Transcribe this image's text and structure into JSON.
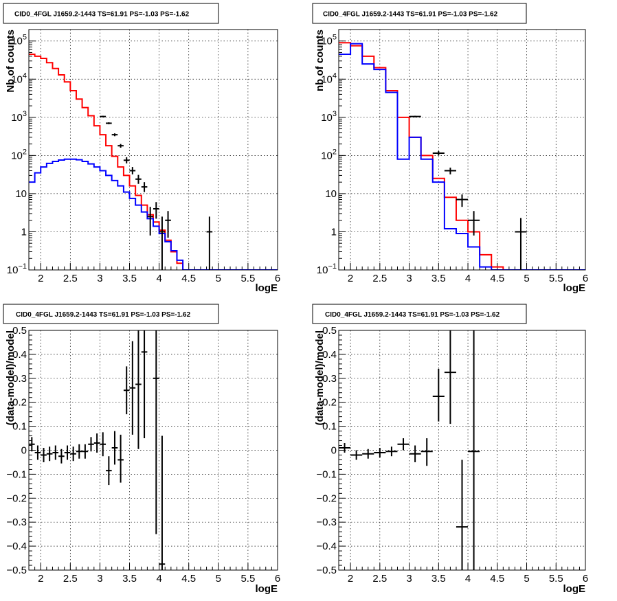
{
  "chart_data": [
    {
      "id": "p1",
      "type": "line",
      "title": "CID0_4FGL J1659.2-1443 TS=61.91 PS=-1.03 PS=-1.62",
      "xlabel": "logE",
      "ylabel": "Nb of counts",
      "xlim": [
        1.8,
        6.0
      ],
      "ylim": [
        0.1,
        200000
      ],
      "yscale": "log",
      "grid": true,
      "x_ticks": [
        "2",
        "2.5",
        "3",
        "3.5",
        "4",
        "4.5",
        "5",
        "5.5",
        "6"
      ],
      "y_ticks": [
        {
          "v": 0.1,
          "label": "10",
          "exp": "−1"
        },
        {
          "v": 1,
          "label": "1",
          "exp": ""
        },
        {
          "v": 10,
          "label": "10",
          "exp": ""
        },
        {
          "v": 100,
          "label": "10",
          "exp": "2"
        },
        {
          "v": 1000,
          "label": "10",
          "exp": "3"
        },
        {
          "v": 10000,
          "label": "10",
          "exp": "4"
        },
        {
          "v": 100000,
          "label": "10",
          "exp": "5"
        }
      ],
      "bin_edges": [
        1.8,
        1.9,
        2.0,
        2.1,
        2.2,
        2.3,
        2.4,
        2.5,
        2.6,
        2.7,
        2.8,
        2.9,
        3.0,
        3.1,
        3.2,
        3.3,
        3.4,
        3.5,
        3.6,
        3.7,
        3.8,
        3.9,
        4.0,
        4.1,
        4.2,
        4.3,
        4.4,
        4.5,
        4.6,
        4.7,
        4.8,
        4.9,
        5.0,
        5.1,
        5.2,
        5.3,
        5.4,
        5.5,
        5.6,
        5.7,
        5.8,
        5.9,
        6.0
      ],
      "series": [
        {
          "color": "#ff0000",
          "style": "step",
          "values": [
            45000,
            40000,
            35000,
            27000,
            19000,
            13000,
            8500,
            5000,
            3000,
            1800,
            1100,
            600,
            350,
            180,
            95,
            50,
            30,
            16,
            9,
            5,
            2.8,
            1.8,
            1.1,
            0.6,
            0.3,
            0.15,
            0.1,
            0.1,
            0.1,
            0.1,
            0.1,
            0.1,
            0.1,
            0.1,
            0.1,
            0.1,
            0.1,
            0.1,
            0.1,
            0.1,
            0.1,
            0.1
          ]
        },
        {
          "color": "#0000ff",
          "style": "step",
          "values": [
            20,
            35,
            50,
            62,
            70,
            76,
            80,
            80,
            77,
            70,
            60,
            50,
            40,
            30,
            22,
            16,
            11,
            7.5,
            5,
            3.3,
            2.2,
            1.4,
            0.9,
            0.55,
            0.32,
            0.18,
            0.1,
            0.1,
            0.1,
            0.1,
            0.1,
            0.1,
            0.1,
            0.1,
            0.1,
            0.1,
            0.1,
            0.1,
            0.1,
            0.1,
            0.1,
            0.1
          ]
        }
      ],
      "points": [
        {
          "x": 3.05,
          "y": 1050,
          "ylo": 1000,
          "yhi": 1100
        },
        {
          "x": 3.15,
          "y": 700,
          "ylo": 660,
          "yhi": 740
        },
        {
          "x": 3.25,
          "y": 350,
          "ylo": 320,
          "yhi": 380
        },
        {
          "x": 3.35,
          "y": 180,
          "ylo": 160,
          "yhi": 200
        },
        {
          "x": 3.45,
          "y": 75,
          "ylo": 62,
          "yhi": 90
        },
        {
          "x": 3.55,
          "y": 40,
          "ylo": 32,
          "yhi": 50
        },
        {
          "x": 3.65,
          "y": 24,
          "ylo": 18,
          "yhi": 31
        },
        {
          "x": 3.75,
          "y": 15,
          "ylo": 11,
          "yhi": 20
        },
        {
          "x": 3.85,
          "y": 2.5,
          "ylo": 0.8,
          "yhi": 4.5
        },
        {
          "x": 3.95,
          "y": 4,
          "ylo": 2.2,
          "yhi": 6
        },
        {
          "x": 4.05,
          "y": 1,
          "ylo": 0.1,
          "yhi": 2.5
        },
        {
          "x": 4.15,
          "y": 2,
          "ylo": 0.7,
          "yhi": 3.5
        },
        {
          "x": 4.85,
          "y": 1,
          "ylo": 0.1,
          "yhi": 2.5
        }
      ]
    },
    {
      "id": "p2",
      "type": "line",
      "title": "CID0_4FGL J1659.2-1443 TS=61.91 PS=-1.03 PS=-1.62",
      "xlabel": "logE",
      "ylabel": "nb of counts",
      "xlim": [
        1.8,
        6.0
      ],
      "ylim": [
        0.1,
        200000
      ],
      "yscale": "log",
      "grid": true,
      "x_ticks": [
        "2",
        "2.5",
        "3",
        "3.5",
        "4",
        "4.5",
        "5",
        "5.5",
        "6"
      ],
      "y_ticks": [
        {
          "v": 0.1,
          "label": "10",
          "exp": "−1"
        },
        {
          "v": 1,
          "label": "1",
          "exp": ""
        },
        {
          "v": 10,
          "label": "10",
          "exp": ""
        },
        {
          "v": 100,
          "label": "10",
          "exp": "2"
        },
        {
          "v": 1000,
          "label": "10",
          "exp": "3"
        },
        {
          "v": 10000,
          "label": "10",
          "exp": "4"
        },
        {
          "v": 100000,
          "label": "10",
          "exp": "5"
        }
      ],
      "bin_edges": [
        1.8,
        2.0,
        2.2,
        2.4,
        2.6,
        2.8,
        3.0,
        3.2,
        3.4,
        3.6,
        3.8,
        4.0,
        4.2,
        4.4,
        4.6,
        4.8,
        5.0,
        5.2,
        5.4,
        5.6,
        5.8,
        6.0
      ],
      "series": [
        {
          "color": "#ff0000",
          "style": "step",
          "values": [
            90000,
            75000,
            40000,
            20000,
            5000,
            1000,
            300,
            100,
            25,
            8,
            2,
            1,
            0.25,
            0.12,
            0.1,
            0.1,
            0.1,
            0.1,
            0.1,
            0.1,
            0.1
          ]
        },
        {
          "color": "#0000ff",
          "style": "step",
          "values": [
            45000,
            85000,
            25000,
            18000,
            4500,
            80,
            300,
            80,
            20,
            1.2,
            0.9,
            0.4,
            0.12,
            0.1,
            0.1,
            0.1,
            0.1,
            0.1,
            0.1,
            0.1,
            0.1
          ]
        }
      ],
      "points": [
        {
          "x": 3.1,
          "y": 1050,
          "ylo": 1000,
          "yhi": 1100
        },
        {
          "x": 3.5,
          "y": 115,
          "ylo": 100,
          "yhi": 130
        },
        {
          "x": 3.7,
          "y": 40,
          "ylo": 32,
          "yhi": 48
        },
        {
          "x": 3.9,
          "y": 7,
          "ylo": 4.5,
          "yhi": 9.5
        },
        {
          "x": 4.1,
          "y": 2,
          "ylo": 0.8,
          "yhi": 3.5
        },
        {
          "x": 4.9,
          "y": 1,
          "ylo": 0.1,
          "yhi": 2.3
        }
      ]
    },
    {
      "id": "p3",
      "type": "scatter",
      "title": "CID0_4FGL J1659.2-1443 TS=61.91 PS=-1.03 PS=-1.62",
      "xlabel": "logE",
      "ylabel": "(data-model)/model",
      "xlim": [
        1.8,
        6.0
      ],
      "ylim": [
        -0.5,
        0.5
      ],
      "yscale": "linear",
      "grid": true,
      "x_ticks": [
        "2",
        "2.5",
        "3",
        "3.5",
        "4",
        "4.5",
        "5",
        "5.5",
        "6"
      ],
      "y_ticks": [
        {
          "v": 0.5,
          "label": "0.5"
        },
        {
          "v": 0.4,
          "label": "0.4"
        },
        {
          "v": 0.3,
          "label": "0.3"
        },
        {
          "v": 0.2,
          "label": "0.2"
        },
        {
          "v": 0.1,
          "label": "0.1"
        },
        {
          "v": 0,
          "label": "0"
        },
        {
          "v": -0.1,
          "label": "−0.1"
        },
        {
          "v": -0.2,
          "label": "−0.2"
        },
        {
          "v": -0.3,
          "label": "−0.3"
        },
        {
          "v": -0.4,
          "label": "−0.4"
        },
        {
          "v": -0.5,
          "label": "−0.5"
        }
      ],
      "points": [
        {
          "x": 1.85,
          "y": 0.025,
          "ylo": -0.005,
          "yhi": 0.055,
          "xw": 0.05
        },
        {
          "x": 1.95,
          "y": -0.01,
          "ylo": -0.04,
          "yhi": 0.02,
          "xw": 0.05
        },
        {
          "x": 2.05,
          "y": -0.02,
          "ylo": -0.05,
          "yhi": 0.01,
          "xw": 0.05
        },
        {
          "x": 2.15,
          "y": -0.015,
          "ylo": -0.045,
          "yhi": 0.015,
          "xw": 0.05
        },
        {
          "x": 2.25,
          "y": -0.01,
          "ylo": -0.04,
          "yhi": 0.02,
          "xw": 0.05
        },
        {
          "x": 2.35,
          "y": -0.025,
          "ylo": -0.055,
          "yhi": 0.005,
          "xw": 0.05
        },
        {
          "x": 2.45,
          "y": -0.01,
          "ylo": -0.04,
          "yhi": 0.02,
          "xw": 0.05
        },
        {
          "x": 2.55,
          "y": -0.015,
          "ylo": -0.045,
          "yhi": 0.015,
          "xw": 0.05
        },
        {
          "x": 2.65,
          "y": -0.005,
          "ylo": -0.035,
          "yhi": 0.025,
          "xw": 0.05
        },
        {
          "x": 2.75,
          "y": -0.005,
          "ylo": -0.035,
          "yhi": 0.025,
          "xw": 0.05
        },
        {
          "x": 2.85,
          "y": 0.025,
          "ylo": -0.005,
          "yhi": 0.055,
          "xw": 0.05
        },
        {
          "x": 2.95,
          "y": 0.03,
          "ylo": -0.01,
          "yhi": 0.07,
          "xw": 0.05
        },
        {
          "x": 3.05,
          "y": 0.025,
          "ylo": -0.025,
          "yhi": 0.075,
          "xw": 0.05
        },
        {
          "x": 3.15,
          "y": -0.085,
          "ylo": -0.145,
          "yhi": -0.025,
          "xw": 0.05
        },
        {
          "x": 3.25,
          "y": 0.01,
          "ylo": -0.06,
          "yhi": 0.08,
          "xw": 0.05
        },
        {
          "x": 3.35,
          "y": -0.04,
          "ylo": -0.135,
          "yhi": 0.065,
          "xw": 0.05
        },
        {
          "x": 3.45,
          "y": 0.25,
          "ylo": 0.15,
          "yhi": 0.35,
          "xw": 0.05
        },
        {
          "x": 3.55,
          "y": 0.26,
          "ylo": 0.065,
          "yhi": 0.455,
          "xw": 0.05
        },
        {
          "x": 3.65,
          "y": 0.275,
          "ylo": 0.005,
          "yhi": 0.5,
          "xw": 0.05
        },
        {
          "x": 3.75,
          "y": 0.41,
          "ylo": 0.05,
          "yhi": 0.5,
          "xw": 0.05
        },
        {
          "x": 3.95,
          "y": 0.3,
          "ylo": -0.35,
          "yhi": 0.5,
          "xw": 0.05
        },
        {
          "x": 4.05,
          "y": -0.475,
          "ylo": -0.5,
          "yhi": 0.06,
          "xw": 0.05
        }
      ]
    },
    {
      "id": "p4",
      "type": "scatter",
      "title": "CID0_4FGL J1659.2-1443 TS=61.91 PS=-1.03 PS=-1.62",
      "xlabel": "logE",
      "ylabel": "(data-model)/model",
      "xlim": [
        1.8,
        6.0
      ],
      "ylim": [
        -0.5,
        0.5
      ],
      "yscale": "linear",
      "grid": true,
      "x_ticks": [
        "2",
        "2.5",
        "3",
        "3.5",
        "4",
        "4.5",
        "5",
        "5.5",
        "6"
      ],
      "y_ticks": [
        {
          "v": 0.5,
          "label": "0.5"
        },
        {
          "v": 0.4,
          "label": "0.4"
        },
        {
          "v": 0.3,
          "label": "0.3"
        },
        {
          "v": 0.2,
          "label": "0.2"
        },
        {
          "v": 0.1,
          "label": "0.1"
        },
        {
          "v": 0,
          "label": "0"
        },
        {
          "v": -0.1,
          "label": "−0.1"
        },
        {
          "v": -0.2,
          "label": "−0.2"
        },
        {
          "v": -0.3,
          "label": "−0.3"
        },
        {
          "v": -0.4,
          "label": "−0.4"
        },
        {
          "v": -0.5,
          "label": "−0.5"
        }
      ],
      "points": [
        {
          "x": 1.9,
          "y": 0.01,
          "ylo": -0.01,
          "yhi": 0.03,
          "xw": 0.1
        },
        {
          "x": 2.1,
          "y": -0.02,
          "ylo": -0.04,
          "yhi": 0.0,
          "xw": 0.1
        },
        {
          "x": 2.3,
          "y": -0.015,
          "ylo": -0.035,
          "yhi": 0.005,
          "xw": 0.1
        },
        {
          "x": 2.5,
          "y": -0.01,
          "ylo": -0.03,
          "yhi": 0.01,
          "xw": 0.1
        },
        {
          "x": 2.7,
          "y": -0.005,
          "ylo": -0.025,
          "yhi": 0.015,
          "xw": 0.1
        },
        {
          "x": 2.9,
          "y": 0.025,
          "ylo": 0.0,
          "yhi": 0.05,
          "xw": 0.1
        },
        {
          "x": 3.1,
          "y": -0.015,
          "ylo": -0.05,
          "yhi": 0.02,
          "xw": 0.1
        },
        {
          "x": 3.3,
          "y": -0.005,
          "ylo": -0.065,
          "yhi": 0.05,
          "xw": 0.1
        },
        {
          "x": 3.5,
          "y": 0.225,
          "ylo": 0.12,
          "yhi": 0.34,
          "xw": 0.1
        },
        {
          "x": 3.7,
          "y": 0.325,
          "ylo": 0.11,
          "yhi": 0.5,
          "xw": 0.1
        },
        {
          "x": 3.9,
          "y": -0.32,
          "ylo": -0.5,
          "yhi": -0.04,
          "xw": 0.1
        },
        {
          "x": 4.1,
          "y": -0.005,
          "ylo": -0.5,
          "yhi": 0.5,
          "xw": 0.1
        }
      ]
    }
  ]
}
